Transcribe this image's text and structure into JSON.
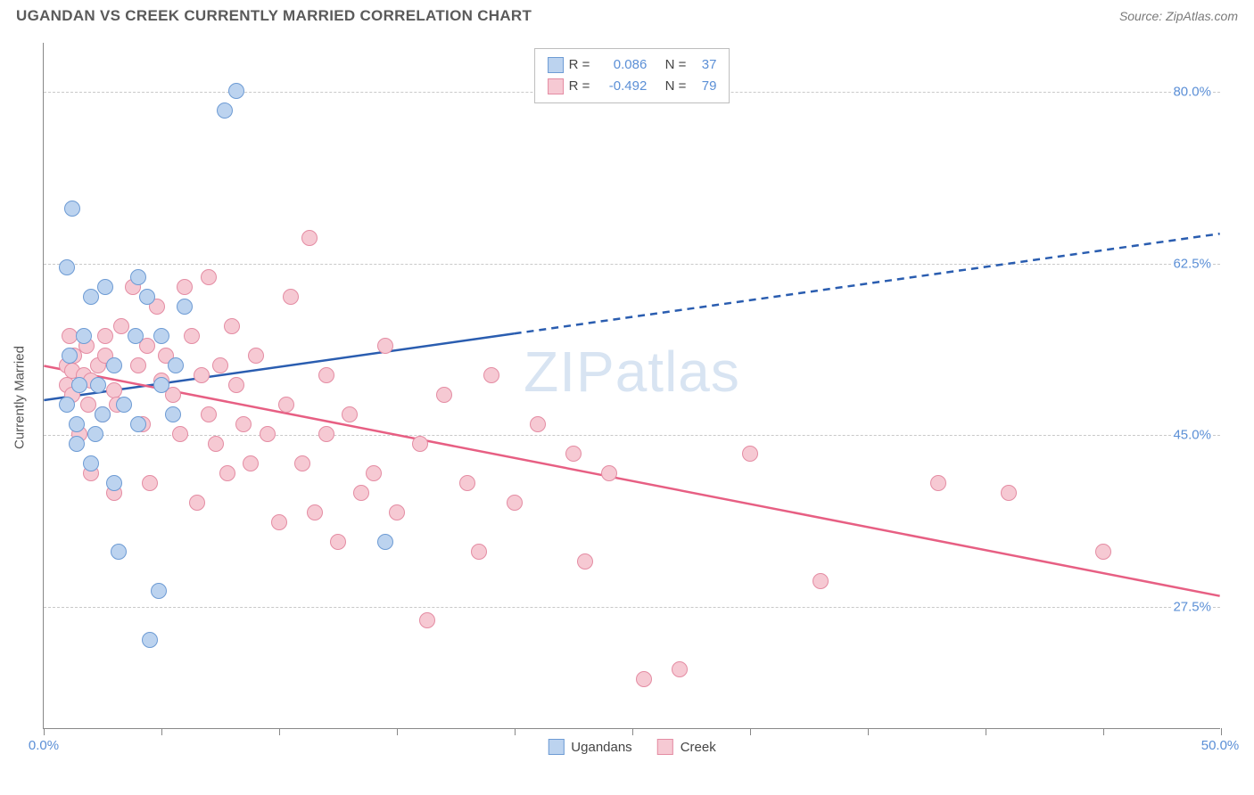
{
  "title": "UGANDAN VS CREEK CURRENTLY MARRIED CORRELATION CHART",
  "source": "Source: ZipAtlas.com",
  "ylabel": "Currently Married",
  "watermark_a": "ZIP",
  "watermark_b": "atlas",
  "chart": {
    "type": "scatter",
    "xlim": [
      0,
      50
    ],
    "ylim": [
      15,
      85
    ],
    "xticks": [
      0,
      5,
      10,
      15,
      20,
      25,
      30,
      35,
      40,
      45,
      50
    ],
    "xlim_labels": {
      "min": "0.0%",
      "max": "50.0%"
    },
    "ygrid": [
      {
        "v": 27.5,
        "label": "27.5%"
      },
      {
        "v": 45.0,
        "label": "45.0%"
      },
      {
        "v": 62.5,
        "label": "62.5%"
      },
      {
        "v": 80.0,
        "label": "80.0%"
      }
    ],
    "background_color": "#ffffff",
    "grid_color": "#c9c9c9"
  },
  "series": {
    "ugandans": {
      "label": "Ugandans",
      "fill": "#bcd3ef",
      "stroke": "#6d9bd4",
      "line_fill": "#2a5db0",
      "R": "0.086",
      "N": "37",
      "trend": {
        "x1": 0,
        "y1": 48.5,
        "x2": 50,
        "y2": 65.5,
        "solid_xmax": 20
      },
      "points": [
        [
          1.0,
          48
        ],
        [
          1.0,
          62
        ],
        [
          1.1,
          53
        ],
        [
          1.2,
          68
        ],
        [
          1.4,
          46
        ],
        [
          1.4,
          44
        ],
        [
          1.5,
          50
        ],
        [
          1.7,
          55
        ],
        [
          2.0,
          59
        ],
        [
          2.0,
          42
        ],
        [
          2.2,
          45
        ],
        [
          2.3,
          50
        ],
        [
          2.5,
          47
        ],
        [
          2.6,
          60
        ],
        [
          3.0,
          52
        ],
        [
          3.0,
          40
        ],
        [
          3.2,
          33
        ],
        [
          3.4,
          48
        ],
        [
          3.9,
          55
        ],
        [
          4.0,
          61
        ],
        [
          4.0,
          46
        ],
        [
          4.4,
          59
        ],
        [
          4.5,
          24
        ],
        [
          4.9,
          29
        ],
        [
          5.0,
          50
        ],
        [
          5.0,
          55
        ],
        [
          5.5,
          47
        ],
        [
          5.6,
          52
        ],
        [
          6.0,
          58
        ],
        [
          7.7,
          78
        ],
        [
          8.2,
          80
        ],
        [
          14.5,
          34
        ]
      ]
    },
    "creek": {
      "label": "Creek",
      "fill": "#f6c9d3",
      "stroke": "#e48ca3",
      "line_fill": "#e75f83",
      "R": "-0.492",
      "N": "79",
      "trend": {
        "x1": 0,
        "y1": 52.0,
        "x2": 50,
        "y2": 28.5,
        "solid_xmax": 50
      },
      "points": [
        [
          1.0,
          50
        ],
        [
          1.0,
          52
        ],
        [
          1.1,
          55
        ],
        [
          1.2,
          49
        ],
        [
          1.2,
          51.5
        ],
        [
          1.3,
          53
        ],
        [
          1.5,
          45
        ],
        [
          1.7,
          51
        ],
        [
          1.8,
          54
        ],
        [
          1.9,
          48
        ],
        [
          2.0,
          50.5
        ],
        [
          2.0,
          41
        ],
        [
          2.3,
          52
        ],
        [
          2.5,
          47
        ],
        [
          2.6,
          55
        ],
        [
          2.6,
          53
        ],
        [
          3.0,
          49.5
        ],
        [
          3.0,
          39
        ],
        [
          3.1,
          48
        ],
        [
          3.3,
          56
        ],
        [
          3.8,
          60
        ],
        [
          4.0,
          52
        ],
        [
          4.2,
          46
        ],
        [
          4.4,
          54
        ],
        [
          4.5,
          40
        ],
        [
          4.8,
          58
        ],
        [
          5.0,
          50.5
        ],
        [
          5.2,
          53
        ],
        [
          5.5,
          49
        ],
        [
          5.8,
          45
        ],
        [
          6.0,
          60
        ],
        [
          6.3,
          55
        ],
        [
          6.5,
          38
        ],
        [
          6.7,
          51
        ],
        [
          7.0,
          47
        ],
        [
          7.0,
          61
        ],
        [
          7.3,
          44
        ],
        [
          7.5,
          52
        ],
        [
          7.8,
          41
        ],
        [
          8.0,
          56
        ],
        [
          8.2,
          50
        ],
        [
          8.5,
          46
        ],
        [
          8.8,
          42
        ],
        [
          9.0,
          53
        ],
        [
          9.5,
          45
        ],
        [
          10.0,
          36
        ],
        [
          10.3,
          48
        ],
        [
          10.5,
          59
        ],
        [
          11.0,
          42
        ],
        [
          11.3,
          65
        ],
        [
          11.5,
          37
        ],
        [
          12.0,
          51
        ],
        [
          12.0,
          45
        ],
        [
          12.5,
          34
        ],
        [
          13.0,
          47
        ],
        [
          13.5,
          39
        ],
        [
          14.0,
          41
        ],
        [
          14.5,
          54
        ],
        [
          15.0,
          37
        ],
        [
          16.0,
          44
        ],
        [
          16.3,
          26
        ],
        [
          17.0,
          49
        ],
        [
          18.0,
          40
        ],
        [
          18.5,
          33
        ],
        [
          19.0,
          51
        ],
        [
          20.0,
          38
        ],
        [
          21.0,
          46
        ],
        [
          22.5,
          43
        ],
        [
          23.0,
          32
        ],
        [
          24.0,
          41
        ],
        [
          25.5,
          20
        ],
        [
          27.0,
          21
        ],
        [
          30.0,
          43
        ],
        [
          33.0,
          30
        ],
        [
          38.0,
          40
        ],
        [
          41.0,
          39
        ],
        [
          45.0,
          33
        ]
      ]
    }
  },
  "legend_top": {
    "r_label": "R  =",
    "n_label": "N  ="
  }
}
